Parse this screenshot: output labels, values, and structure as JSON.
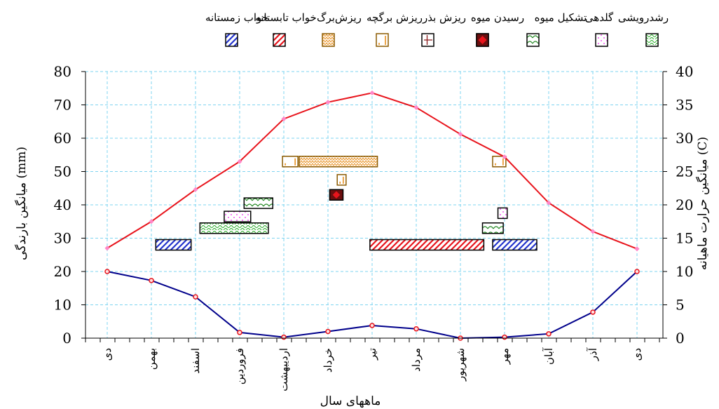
{
  "chart_data": {
    "type": "line",
    "x_categories": [
      "دی",
      "بهمن",
      "اسفند",
      "فروردین",
      "اردیبهشت",
      "خرداد",
      "تیر",
      "مرداد",
      "شهریور",
      "مهر",
      "آبان",
      "آذر",
      "دی"
    ],
    "xlabel": "ماههای سال",
    "ylabel_left": "میانگین بارندگی (mm)",
    "ylabel_right": "میانگین حرارت ماهیانه (C)",
    "ylim_left": [
      0,
      80
    ],
    "yticks_left": [
      0,
      10,
      20,
      30,
      40,
      50,
      60,
      70,
      80
    ],
    "ylim_right": [
      0,
      40
    ],
    "yticks_right": [
      0,
      5,
      10,
      15,
      20,
      25,
      30,
      35,
      40
    ],
    "grid": true,
    "legend_position": "top",
    "series": [
      {
        "axis": "right",
        "color": "#e8141c",
        "marker_color": "#ff88c8",
        "values": [
          13.5,
          17.5,
          22.3,
          26.5,
          32.9,
          35.4,
          36.8,
          34.6,
          30.6,
          27.2,
          20.3,
          16.0,
          13.4
        ]
      },
      {
        "axis": "left",
        "color": "#00008b",
        "marker_color": "#e8141c",
        "values": [
          20.0,
          17.3,
          12.4,
          1.7,
          0.3,
          2.0,
          3.8,
          2.8,
          0.0,
          0.3,
          1.3,
          7.8,
          20.0
        ]
      }
    ],
    "legend": [
      {
        "label": "رشدرویشی",
        "pattern": "wave",
        "color": "#22aa22"
      },
      {
        "label": "گلدهی",
        "pattern": "dots",
        "color": "#ee22ee"
      },
      {
        "label": "تشکیل میوه",
        "pattern": "curve",
        "color": "#228822"
      },
      {
        "label": "رسیدن میوه",
        "pattern": "diamond",
        "color": "#6b0f0f"
      },
      {
        "label": "ریزش بذر",
        "pattern": "frame",
        "color": "#8b1a1a"
      },
      {
        "label": "ریزش برگچه",
        "pattern": "corner",
        "color": "#e89020"
      },
      {
        "label": "ریزش‌برگ",
        "pattern": "zigzag",
        "color": "#e89020"
      },
      {
        "label": "خواب تابستانه",
        "pattern": "hatch",
        "color": "#e8141c"
      },
      {
        "label": "خواب زمستانه",
        "pattern": "hatch",
        "color": "#2233cc"
      }
    ],
    "phenology_bars": [
      {
        "phase": "خواب زمستانه",
        "start": 1.1,
        "end": 1.9,
        "level": 28
      },
      {
        "phase": "رشدرویشی",
        "start": 2.1,
        "end": 3.65,
        "level": 33
      },
      {
        "phase": "گلدهی",
        "start": 2.65,
        "end": 3.25,
        "level": 36.5
      },
      {
        "phase": "تشکیل میوه",
        "start": 3.1,
        "end": 3.75,
        "level": 40.5
      },
      {
        "phase": "ریزش برگچه",
        "start": 3.97,
        "end": 4.32,
        "level": 53
      },
      {
        "phase": "ریزش‌برگ",
        "start": 4.35,
        "end": 6.12,
        "level": 53
      },
      {
        "phase": "ریزش برگچه",
        "start": 5.21,
        "end": 5.41,
        "level": 47.5
      },
      {
        "phase": "رسیدن میوه",
        "start": 5.04,
        "end": 5.34,
        "level": 43
      },
      {
        "phase": "خواب تابستانه",
        "start": 5.95,
        "end": 8.53,
        "level": 28
      },
      {
        "phase": "تشکیل میوه",
        "start": 8.5,
        "end": 8.97,
        "level": 33
      },
      {
        "phase": "گلدهی",
        "start": 8.85,
        "end": 9.06,
        "level": 37.5
      },
      {
        "phase": "ریزش برگچه",
        "start": 8.73,
        "end": 9.03,
        "level": 53
      },
      {
        "phase": "خواب زمستانه",
        "start": 8.73,
        "end": 9.73,
        "level": 28
      }
    ]
  }
}
